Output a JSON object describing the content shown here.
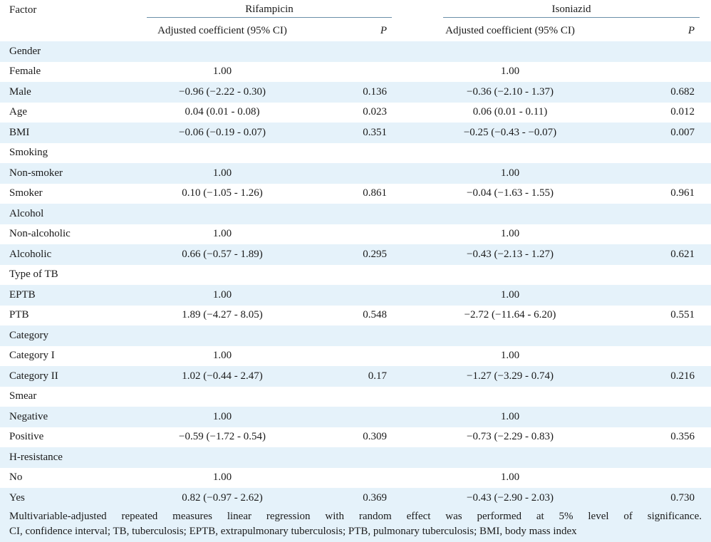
{
  "header": {
    "factor": "Factor",
    "group1": "Rifampicin",
    "group2": "Isoniazid",
    "coef": "Adjusted coefficient (95% CI)",
    "p": "P"
  },
  "rows": [
    {
      "label": "Gender",
      "coef1": "",
      "p1": "",
      "coef2": "",
      "p2": ""
    },
    {
      "label": "Female",
      "coef1": "1.00",
      "p1": "",
      "coef2": "1.00",
      "p2": ""
    },
    {
      "label": "Male",
      "coef1": "−0.96 (−2.22 - 0.30)",
      "p1": "0.136",
      "coef2": "−0.36 (−2.10 - 1.37)",
      "p2": "0.682"
    },
    {
      "label": "Age",
      "coef1": "0.04 (0.01 - 0.08)",
      "p1": "0.023",
      "coef2": "0.06 (0.01 - 0.11)",
      "p2": "0.012"
    },
    {
      "label": "BMI",
      "coef1": "−0.06 (−0.19 - 0.07)",
      "p1": "0.351",
      "coef2": "−0.25 (−0.43 - −0.07)",
      "p2": "0.007"
    },
    {
      "label": "Smoking",
      "coef1": "",
      "p1": "",
      "coef2": "",
      "p2": ""
    },
    {
      "label": "Non-smoker",
      "coef1": "1.00",
      "p1": "",
      "coef2": "1.00",
      "p2": ""
    },
    {
      "label": "Smoker",
      "coef1": "0.10 (−1.05 - 1.26)",
      "p1": "0.861",
      "coef2": "−0.04 (−1.63 - 1.55)",
      "p2": "0.961"
    },
    {
      "label": "Alcohol",
      "coef1": "",
      "p1": "",
      "coef2": "",
      "p2": ""
    },
    {
      "label": "Non-alcoholic",
      "coef1": "1.00",
      "p1": "",
      "coef2": "1.00",
      "p2": ""
    },
    {
      "label": "Alcoholic",
      "coef1": "0.66 (−0.57 - 1.89)",
      "p1": "0.295",
      "coef2": "−0.43 (−2.13 - 1.27)",
      "p2": "0.621"
    },
    {
      "label": "Type of TB",
      "coef1": "",
      "p1": "",
      "coef2": "",
      "p2": ""
    },
    {
      "label": "EPTB",
      "coef1": "1.00",
      "p1": "",
      "coef2": "1.00",
      "p2": ""
    },
    {
      "label": "PTB",
      "coef1": "1.89 (−4.27 - 8.05)",
      "p1": "0.548",
      "coef2": "−2.72 (−11.64 - 6.20)",
      "p2": "0.551"
    },
    {
      "label": "Category",
      "coef1": "",
      "p1": "",
      "coef2": "",
      "p2": ""
    },
    {
      "label": "Category I",
      "coef1": "1.00",
      "p1": "",
      "coef2": "1.00",
      "p2": ""
    },
    {
      "label": "Category II",
      "coef1": "1.02 (−0.44 - 2.47)",
      "p1": "0.17",
      "coef2": "−1.27 (−3.29 - 0.74)",
      "p2": "0.216"
    },
    {
      "label": "Smear",
      "coef1": "",
      "p1": "",
      "coef2": "",
      "p2": ""
    },
    {
      "label": "Negative",
      "coef1": "1.00",
      "p1": "",
      "coef2": "1.00",
      "p2": ""
    },
    {
      "label": "Positive",
      "coef1": "−0.59 (−1.72 - 0.54)",
      "p1": "0.309",
      "coef2": "−0.73 (−2.29 - 0.83)",
      "p2": "0.356"
    },
    {
      "label": "H-resistance",
      "coef1": "",
      "p1": "",
      "coef2": "",
      "p2": ""
    },
    {
      "label": "No",
      "coef1": "1.00",
      "p1": "",
      "coef2": "1.00",
      "p2": ""
    },
    {
      "label": "Yes",
      "coef1": "0.82 (−0.97 - 2.62)",
      "p1": "0.369",
      "coef2": "−0.43 (−2.90 - 2.03)",
      "p2": "0.730"
    }
  ],
  "footnote": {
    "line1": "Multivariable-adjusted repeated measures linear regression with random effect was performed at 5% level of significance.",
    "line2": "CI, confidence interval; TB, tuberculosis; EPTB, extrapulmonary tuberculosis; PTB, pulmonary tuberculosis; BMI, body mass index"
  },
  "colors": {
    "band": "#e5f2fa",
    "rule": "#6a8fa8"
  }
}
